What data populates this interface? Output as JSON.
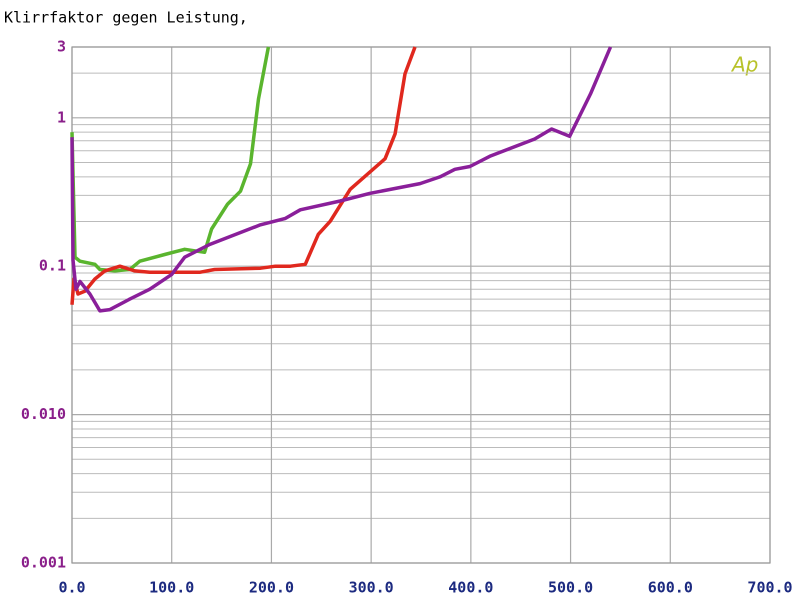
{
  "chart_data": {
    "type": "line",
    "title": "Klirrfaktor gegen Leistung,",
    "logo": "Ap",
    "log_y": true,
    "grid": true,
    "minor_grid": true,
    "xlim": [
      0,
      700
    ],
    "ylim": [
      0.001,
      3
    ],
    "xticks": [
      {
        "value": 0,
        "label": "0.0"
      },
      {
        "value": 100,
        "label": "100.0"
      },
      {
        "value": 200,
        "label": "200.0"
      },
      {
        "value": 300,
        "label": "300.0"
      },
      {
        "value": 400,
        "label": "400.0"
      },
      {
        "value": 500,
        "label": "500.0"
      },
      {
        "value": 600,
        "label": "600.0"
      },
      {
        "value": 700,
        "label": "700.0"
      }
    ],
    "yticks": [
      {
        "value": 0.001,
        "label": "0.001"
      },
      {
        "value": 0.01,
        "label": "0.010"
      },
      0.1,
      1,
      3
    ],
    "series": [
      {
        "color": "#5ab52e",
        "x": [
          0,
          3,
          8,
          23,
          28,
          43,
          58,
          68,
          93,
          113,
          133,
          140,
          156,
          169,
          179,
          187,
          197
        ],
        "values": [
          0.8,
          0.115,
          0.108,
          0.103,
          0.095,
          0.093,
          0.095,
          0.108,
          0.12,
          0.13,
          0.124,
          0.178,
          0.262,
          0.32,
          0.49,
          1.34,
          3
        ]
      },
      {
        "color": "#e0281e",
        "x": [
          0,
          2,
          6,
          13,
          23,
          33,
          48,
          63,
          78,
          128,
          143,
          189,
          204,
          219,
          234,
          247,
          259,
          279,
          314,
          324,
          334,
          344
        ],
        "values": [
          0.055,
          0.082,
          0.065,
          0.068,
          0.082,
          0.093,
          0.1,
          0.093,
          0.091,
          0.091,
          0.095,
          0.097,
          0.1,
          0.1,
          0.103,
          0.164,
          0.201,
          0.33,
          0.53,
          0.78,
          1.98,
          3
        ]
      },
      {
        "color": "#8a1f9a",
        "x": [
          0,
          1,
          4,
          8,
          18,
          28,
          38,
          58,
          78,
          100,
          113,
          138,
          189,
          214,
          229,
          269,
          299,
          349,
          369,
          384,
          399,
          419,
          464,
          481,
          499,
          520,
          540
        ],
        "values": [
          0.74,
          0.11,
          0.07,
          0.079,
          0.065,
          0.05,
          0.051,
          0.06,
          0.07,
          0.088,
          0.115,
          0.14,
          0.19,
          0.21,
          0.24,
          0.275,
          0.31,
          0.36,
          0.4,
          0.45,
          0.47,
          0.55,
          0.72,
          0.84,
          0.75,
          1.45,
          3
        ]
      }
    ]
  }
}
